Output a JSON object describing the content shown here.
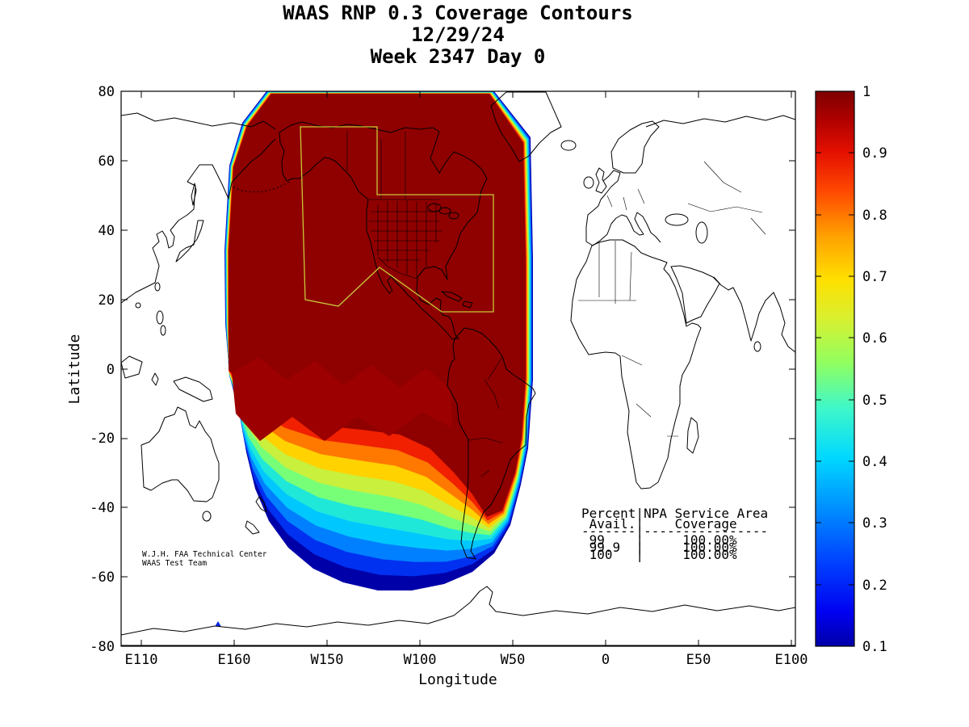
{
  "title": {
    "line1": "WAAS RNP 0.3 Coverage Contours",
    "line2": "12/29/24",
    "line3": "Week 2347 Day 0"
  },
  "axes": {
    "xlabel": "Longitude",
    "ylabel": "Latitude",
    "x_ticks": [
      "E110",
      "E160",
      "W150",
      "W100",
      "W50",
      "0",
      "E50",
      "E100"
    ],
    "y_ticks": [
      "80",
      "60",
      "40",
      "20",
      "0",
      "-20",
      "-40",
      "-60",
      "-80"
    ]
  },
  "colorbar": {
    "ticks": [
      "1",
      "0.9",
      "0.8",
      "0.7",
      "0.6",
      "0.5",
      "0.4",
      "0.3",
      "0.2",
      "0.1"
    ]
  },
  "annotations": {
    "credit_line1": "W.J.H. FAA Technical Center",
    "credit_line2": "WAAS Test Team",
    "table_lines": [
      "Percent|NPA Service Area",
      " Avail.|    Coverage",
      "-------|----------------",
      " 99    |     100.00%",
      " 99.9  |     100.00%",
      " 100   |     100.00%"
    ]
  },
  "colors": {
    "jet_bands": [
      "#0000A8",
      "#0030F0",
      "#0080FF",
      "#00C8FF",
      "#20E8D8",
      "#78FF78",
      "#C8F03C",
      "#FFD200",
      "#FF7800",
      "#F02000"
    ],
    "core": "#8F0000",
    "core_variation": "#9C0000",
    "triangle_bands": [
      "#0028E0",
      "#00C8FF",
      "#E8E800",
      "#E83000"
    ],
    "service_area": "#C8C838",
    "coast": "#000000"
  },
  "chart_data": {
    "type": "heatmap",
    "title": "WAAS RNP 0.3 Coverage Contours",
    "subtitle": [
      "12/29/24",
      "Week 2347 Day 0"
    ],
    "xlabel": "Longitude",
    "ylabel": "Latitude",
    "x_tick_labels": [
      "E110",
      "E160",
      "W150",
      "W100",
      "W50",
      "0",
      "E50",
      "E100"
    ],
    "y_tick_labels": [
      80,
      60,
      40,
      20,
      0,
      -20,
      -40,
      -60,
      -80
    ],
    "colorbar_range": [
      0.1,
      1
    ],
    "contour_levels": [
      0.1,
      0.2,
      0.3,
      0.4,
      0.5,
      0.6,
      0.7,
      0.8,
      0.9,
      1.0
    ],
    "coverage_summary": "Coverage ~1.0 (dark red) over North America and eastern Pacific from ~80N to ~10S between ~E155 and ~W40; coverage decreases 0.9 to 0.1 southward across the South Pacific to ~65S",
    "service_area_table": {
      "columns": [
        "Percent Avail.",
        "NPA Service Area Coverage"
      ],
      "rows": [
        [
          "99",
          "100.00%"
        ],
        [
          "99.9",
          "100.00%"
        ],
        [
          "100",
          "100.00%"
        ]
      ]
    }
  }
}
